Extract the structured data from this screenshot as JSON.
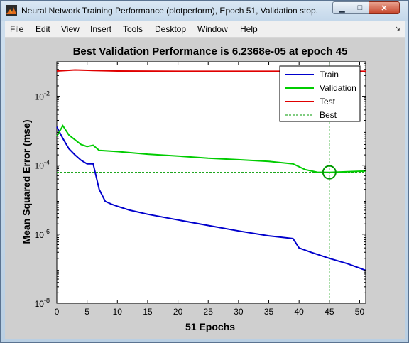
{
  "window": {
    "title": "Neural Network Training Performance (plotperform), Epoch 51, Validation stop.",
    "buttons": {
      "minimize": "▁",
      "maximize": "□",
      "close": "✕"
    }
  },
  "menu": {
    "items": [
      "File",
      "Edit",
      "View",
      "Insert",
      "Tools",
      "Desktop",
      "Window",
      "Help"
    ],
    "dock_glyph": "↘"
  },
  "chart_data": {
    "type": "line",
    "title": "Best Validation Performance is 6.2368e-05 at epoch 45",
    "xlabel": "51 Epochs",
    "ylabel": "Mean Squared Error  (mse)",
    "xlim": [
      0,
      51
    ],
    "ylim": [
      1e-08,
      0.1
    ],
    "yscale": "log",
    "xticks": [
      0,
      5,
      10,
      15,
      20,
      25,
      30,
      35,
      40,
      45,
      50
    ],
    "yticks": [
      {
        "value": 1e-08,
        "base": "10",
        "exp": "-8"
      },
      {
        "value": 1e-06,
        "base": "10",
        "exp": "-6"
      },
      {
        "value": 0.0001,
        "base": "10",
        "exp": "-4"
      },
      {
        "value": 0.01,
        "base": "10",
        "exp": "-2"
      }
    ],
    "legend_position": "top-right",
    "best": {
      "epoch": 45,
      "value": 6.2368e-05
    },
    "series": [
      {
        "name": "Train",
        "color": "#0000cc",
        "style": "solid",
        "points": [
          [
            0,
            0.0013
          ],
          [
            1,
            0.0006
          ],
          [
            2,
            0.0003
          ],
          [
            3,
            0.0002
          ],
          [
            4,
            0.00014
          ],
          [
            5,
            0.00011
          ],
          [
            6,
            0.00011
          ],
          [
            7,
            2e-05
          ],
          [
            8,
            9e-06
          ],
          [
            9,
            7.5e-06
          ],
          [
            10,
            6.5e-06
          ],
          [
            12,
            5e-06
          ],
          [
            15,
            3.8e-06
          ],
          [
            20,
            2.6e-06
          ],
          [
            25,
            1.8e-06
          ],
          [
            30,
            1.25e-06
          ],
          [
            35,
            9e-07
          ],
          [
            39,
            7.5e-07
          ],
          [
            40,
            4e-07
          ],
          [
            42,
            3e-07
          ],
          [
            45,
            2e-07
          ],
          [
            48,
            1.4e-07
          ],
          [
            51,
            9e-08
          ]
        ]
      },
      {
        "name": "Validation",
        "color": "#00cc00",
        "style": "solid",
        "points": [
          [
            0,
            0.0007
          ],
          [
            1,
            0.0014
          ],
          [
            2,
            0.00075
          ],
          [
            3,
            0.00055
          ],
          [
            4,
            0.0004
          ],
          [
            5,
            0.00035
          ],
          [
            6,
            0.00038
          ],
          [
            7,
            0.00027
          ],
          [
            10,
            0.00025
          ],
          [
            15,
            0.00021
          ],
          [
            20,
            0.000185
          ],
          [
            25,
            0.00016
          ],
          [
            30,
            0.000145
          ],
          [
            35,
            0.00013
          ],
          [
            39,
            0.00011
          ],
          [
            41,
            7.5e-05
          ],
          [
            43,
            6.3e-05
          ],
          [
            45,
            6.2368e-05
          ],
          [
            48,
            6.5e-05
          ],
          [
            51,
            6.8e-05
          ]
        ]
      },
      {
        "name": "Test",
        "color": "#e00000",
        "style": "solid",
        "points": [
          [
            0,
            0.054
          ],
          [
            3,
            0.058
          ],
          [
            6,
            0.056
          ],
          [
            10,
            0.054
          ],
          [
            20,
            0.053
          ],
          [
            30,
            0.053
          ],
          [
            40,
            0.053
          ],
          [
            51,
            0.053
          ]
        ]
      },
      {
        "name": "Best",
        "color": "#009900",
        "style": "dotted",
        "points": []
      }
    ]
  }
}
